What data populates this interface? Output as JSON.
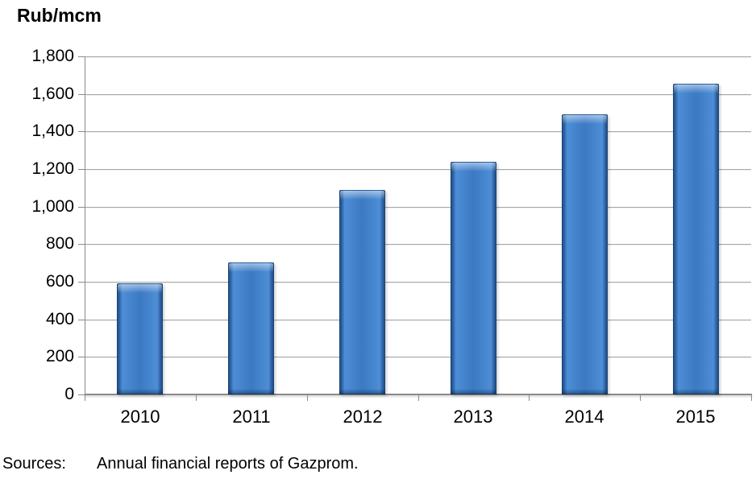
{
  "chart_data": {
    "type": "bar",
    "title": "Rub/mcm",
    "categories": [
      "2010",
      "2011",
      "2012",
      "2013",
      "2014",
      "2015"
    ],
    "values": [
      590,
      705,
      1090,
      1240,
      1490,
      1655
    ],
    "ylim": [
      0,
      1800
    ],
    "ytick_step": 200,
    "ytick_labels": [
      "0",
      "200",
      "400",
      "600",
      "800",
      "1,000",
      "1,200",
      "1,400",
      "1,600",
      "1,800"
    ],
    "xlabel": "",
    "ylabel": "Rub/mcm",
    "grid": true,
    "legend": "none",
    "bar_color": "#3c79c4",
    "bar_edge_color": "#1e4c82",
    "gridline_color": "#a6a6a6",
    "axis_color": "#8a8a8a",
    "source": {
      "label": "Sources:",
      "text": "Annual financial reports of Gazprom."
    }
  }
}
